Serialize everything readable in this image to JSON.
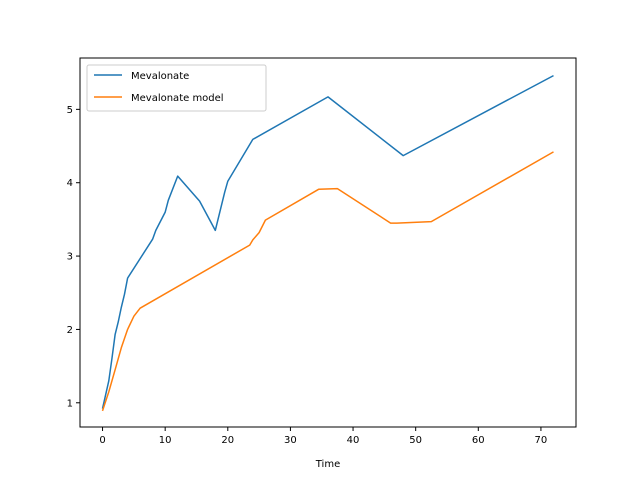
{
  "chart_data": {
    "type": "line",
    "title": "",
    "xlabel": "Time",
    "ylabel": "",
    "xlim": [
      -3.6,
      75.6
    ],
    "ylim": [
      0.67,
      5.7
    ],
    "xticks": [
      0,
      10,
      20,
      30,
      40,
      50,
      60,
      70
    ],
    "yticks": [
      1,
      2,
      3,
      4,
      5
    ],
    "grid": false,
    "legend_position": "upper-left",
    "series": [
      {
        "name": "Mevalonate",
        "color": "#1f77b4",
        "x": [
          0,
          1,
          1.5,
          2,
          2.5,
          3,
          3.5,
          4,
          8,
          8.5,
          10,
          10.5,
          12,
          15.5,
          18,
          19.5,
          20,
          24,
          36,
          48,
          72
        ],
        "y": [
          0.92,
          1.3,
          1.6,
          1.93,
          2.1,
          2.3,
          2.48,
          2.7,
          3.23,
          3.35,
          3.6,
          3.76,
          4.09,
          3.75,
          3.35,
          3.87,
          4.02,
          4.59,
          5.17,
          4.37,
          5.46
        ]
      },
      {
        "name": "Mevalonate model",
        "color": "#ff7f0e",
        "x": [
          0,
          1,
          2,
          3,
          4,
          5,
          6,
          23.5,
          24,
          25,
          26,
          34.5,
          37.5,
          46,
          47,
          52.5,
          72
        ],
        "y": [
          0.89,
          1.15,
          1.45,
          1.75,
          2.0,
          2.18,
          2.29,
          3.15,
          3.22,
          3.32,
          3.49,
          3.91,
          3.92,
          3.45,
          3.45,
          3.47,
          4.42
        ]
      }
    ]
  }
}
